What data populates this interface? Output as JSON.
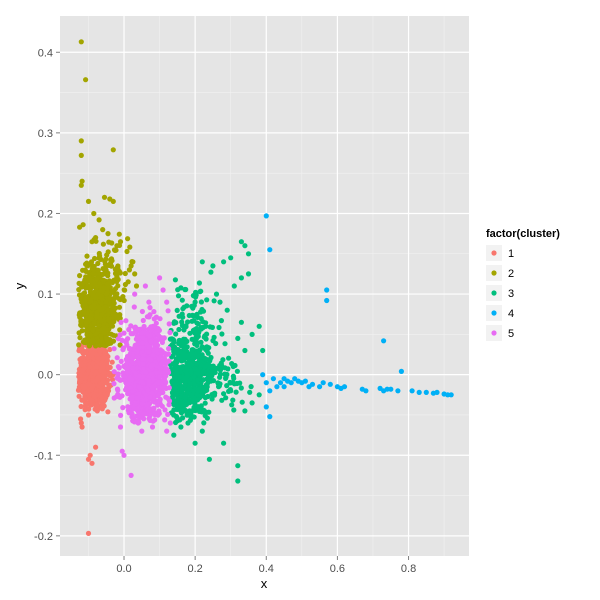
{
  "chart_data": {
    "type": "scatter",
    "xlabel": "x",
    "ylabel": "y",
    "xlim": [
      -0.18,
      0.97
    ],
    "ylim": [
      -0.225,
      0.445
    ],
    "x_ticks": [
      0.0,
      0.2,
      0.4,
      0.6,
      0.8
    ],
    "x_tick_labels": [
      "0.0",
      "0.2",
      "0.4",
      "0.6",
      "0.8"
    ],
    "y_ticks": [
      -0.2,
      -0.1,
      0.0,
      0.1,
      0.2,
      0.3,
      0.4
    ],
    "y_tick_labels": [
      "-0.2",
      "-0.1",
      "0.0",
      "0.1",
      "0.2",
      "0.3",
      "0.4"
    ],
    "grid": true,
    "background": "#e5e5e5",
    "legend": {
      "title": "factor(cluster)",
      "position": "right",
      "entries": [
        {
          "label": "1",
          "color": "#F8766D"
        },
        {
          "label": "2",
          "color": "#A3A500"
        },
        {
          "label": "3",
          "color": "#00BF7D"
        },
        {
          "label": "4",
          "color": "#00B0F6"
        },
        {
          "label": "5",
          "color": "#E76BF3"
        }
      ]
    },
    "series": [
      {
        "name": "1",
        "color": "#F8766D",
        "points": [
          [
            -0.12,
            -0.06
          ],
          [
            -0.118,
            -0.065
          ],
          [
            -0.122,
            -0.055
          ],
          [
            -0.1,
            -0.05
          ],
          [
            -0.095,
            -0.1
          ],
          [
            -0.1,
            -0.105
          ],
          [
            -0.09,
            -0.11
          ],
          [
            -0.08,
            -0.09
          ],
          [
            -0.075,
            -0.045
          ],
          [
            -0.1,
            -0.197
          ],
          [
            -0.115,
            0.04
          ],
          [
            -0.12,
            0.02
          ],
          [
            -0.125,
            0.0
          ],
          [
            -0.11,
            -0.03
          ],
          [
            -0.05,
            -0.025
          ],
          [
            -0.06,
            -0.035
          ],
          [
            -0.07,
            0.02
          ]
        ],
        "clouds": [
          {
            "count": 650,
            "cx": -0.085,
            "cy": -0.002,
            "sx": 0.022,
            "sy": 0.021,
            "xr": [
              -0.128,
              -0.03
            ],
            "yr": [
              -0.048,
              0.045
            ]
          }
        ]
      },
      {
        "name": "2",
        "color": "#A3A500",
        "points": [
          [
            -0.12,
            0.413
          ],
          [
            -0.108,
            0.366
          ],
          [
            -0.12,
            0.29
          ],
          [
            -0.12,
            0.272
          ],
          [
            -0.118,
            0.24
          ],
          [
            -0.12,
            0.235
          ],
          [
            -0.03,
            0.279
          ],
          [
            -0.1,
            0.215
          ],
          [
            -0.085,
            0.2
          ],
          [
            -0.055,
            0.22
          ],
          [
            -0.04,
            0.218
          ],
          [
            -0.03,
            0.215
          ],
          [
            -0.115,
            0.186
          ],
          [
            -0.125,
            0.183
          ],
          [
            -0.07,
            0.192
          ],
          [
            -0.06,
            0.18
          ],
          [
            -0.02,
            0.16
          ],
          [
            -0.01,
            0.165
          ],
          [
            -0.045,
            0.175
          ],
          [
            0.02,
            0.135
          ],
          [
            0.03,
            0.125
          ],
          [
            0.035,
            0.11
          ],
          [
            0.025,
            0.14
          ],
          [
            0.015,
            0.13
          ],
          [
            -0.08,
            0.17
          ],
          [
            -0.09,
            0.165
          ]
        ],
        "clouds": [
          {
            "count": 620,
            "cx": -0.075,
            "cy": 0.075,
            "sx": 0.028,
            "sy": 0.03,
            "xr": [
              -0.128,
              -0.005
            ],
            "yr": [
              0.035,
              0.16
            ]
          },
          {
            "count": 90,
            "cx": -0.04,
            "cy": 0.12,
            "sx": 0.035,
            "sy": 0.03,
            "xr": [
              -0.125,
              0.04
            ],
            "yr": [
              0.09,
              0.175
            ]
          }
        ]
      },
      {
        "name": "3",
        "color": "#00BF7D",
        "points": [
          [
            0.33,
            0.165
          ],
          [
            0.34,
            0.16
          ],
          [
            0.35,
            0.15
          ],
          [
            0.3,
            0.145
          ],
          [
            0.25,
            0.135
          ],
          [
            0.33,
            0.12
          ],
          [
            0.31,
            0.11
          ],
          [
            0.29,
            0.08
          ],
          [
            0.33,
            0.065
          ],
          [
            0.38,
            0.06
          ],
          [
            0.36,
            0.05
          ],
          [
            0.34,
            0.03
          ],
          [
            0.32,
            0.045
          ],
          [
            0.2,
            0.09
          ],
          [
            0.22,
            0.14
          ],
          [
            0.26,
            0.1
          ],
          [
            0.28,
            0.14
          ],
          [
            0.35,
            0.125
          ],
          [
            0.39,
            0.03
          ],
          [
            0.24,
            -0.105
          ],
          [
            0.32,
            -0.113
          ],
          [
            0.32,
            -0.132
          ],
          [
            0.2,
            -0.085
          ],
          [
            0.22,
            -0.07
          ],
          [
            0.28,
            -0.085
          ],
          [
            0.34,
            -0.045
          ],
          [
            0.36,
            -0.035
          ],
          [
            0.38,
            -0.025
          ],
          [
            0.18,
            -0.06
          ],
          [
            0.14,
            -0.075
          ],
          [
            0.16,
            -0.065
          ],
          [
            0.3,
            -0.02
          ],
          [
            0.27,
            0.09
          ],
          [
            0.23,
            0.06
          ]
        ],
        "clouds": [
          {
            "count": 380,
            "cx": 0.165,
            "cy": -0.01,
            "sx": 0.04,
            "sy": 0.03,
            "xr": [
              0.13,
              0.25
            ],
            "yr": [
              -0.06,
              0.06
            ]
          },
          {
            "count": 120,
            "cx": 0.24,
            "cy": -0.005,
            "sx": 0.06,
            "sy": 0.015,
            "xr": [
              0.13,
              0.4
            ],
            "yr": [
              -0.05,
              0.04
            ]
          },
          {
            "count": 140,
            "cx": 0.19,
            "cy": 0.05,
            "sx": 0.04,
            "sy": 0.035,
            "xr": [
              0.13,
              0.32
            ],
            "yr": [
              -0.02,
              0.13
            ]
          }
        ]
      },
      {
        "name": "4",
        "color": "#00B0F6",
        "points": [
          [
            0.4,
            0.197
          ],
          [
            0.41,
            0.155
          ],
          [
            0.57,
            0.105
          ],
          [
            0.57,
            0.092
          ],
          [
            0.73,
            0.042
          ],
          [
            0.78,
            0.004
          ],
          [
            0.4,
            -0.01
          ],
          [
            0.41,
            -0.02
          ],
          [
            0.4,
            -0.04
          ],
          [
            0.41,
            -0.052
          ],
          [
            0.43,
            -0.015
          ],
          [
            0.44,
            -0.01
          ],
          [
            0.45,
            -0.005
          ],
          [
            0.46,
            -0.008
          ],
          [
            0.47,
            -0.01
          ],
          [
            0.48,
            -0.005
          ],
          [
            0.49,
            -0.008
          ],
          [
            0.5,
            -0.01
          ],
          [
            0.51,
            -0.008
          ],
          [
            0.52,
            -0.015
          ],
          [
            0.53,
            -0.012
          ],
          [
            0.55,
            -0.015
          ],
          [
            0.56,
            -0.01
          ],
          [
            0.58,
            -0.012
          ],
          [
            0.6,
            -0.015
          ],
          [
            0.61,
            -0.017
          ],
          [
            0.62,
            -0.015
          ],
          [
            0.67,
            -0.018
          ],
          [
            0.68,
            -0.02
          ],
          [
            0.72,
            -0.017
          ],
          [
            0.73,
            -0.02
          ],
          [
            0.74,
            -0.018
          ],
          [
            0.75,
            -0.018
          ],
          [
            0.77,
            -0.02
          ],
          [
            0.81,
            -0.02
          ],
          [
            0.83,
            -0.022
          ],
          [
            0.85,
            -0.022
          ],
          [
            0.87,
            -0.023
          ],
          [
            0.88,
            -0.022
          ],
          [
            0.9,
            -0.024
          ],
          [
            0.91,
            -0.025
          ],
          [
            0.92,
            -0.025
          ],
          [
            0.42,
            -0.005
          ],
          [
            0.45,
            -0.015
          ],
          [
            0.39,
            0.0
          ]
        ]
      },
      {
        "name": "5",
        "color": "#E76BF3",
        "points": [
          [
            0.02,
            -0.125
          ],
          [
            0.0,
            -0.1
          ],
          [
            -0.005,
            -0.095
          ],
          [
            0.05,
            -0.07
          ],
          [
            0.08,
            -0.065
          ],
          [
            0.04,
            -0.06
          ],
          [
            0.03,
            0.1
          ],
          [
            0.06,
            0.11
          ],
          [
            0.1,
            0.12
          ],
          [
            0.11,
            0.105
          ],
          [
            0.12,
            0.09
          ],
          [
            0.07,
            0.09
          ],
          [
            0.13,
            -0.06
          ],
          [
            0.12,
            -0.07
          ],
          [
            -0.01,
            -0.065
          ]
        ],
        "clouds": [
          {
            "count": 900,
            "cx": 0.06,
            "cy": 0.0,
            "sx": 0.035,
            "sy": 0.028,
            "xr": [
              -0.03,
              0.13
            ],
            "yr": [
              -0.06,
              0.095
            ]
          }
        ]
      }
    ]
  }
}
